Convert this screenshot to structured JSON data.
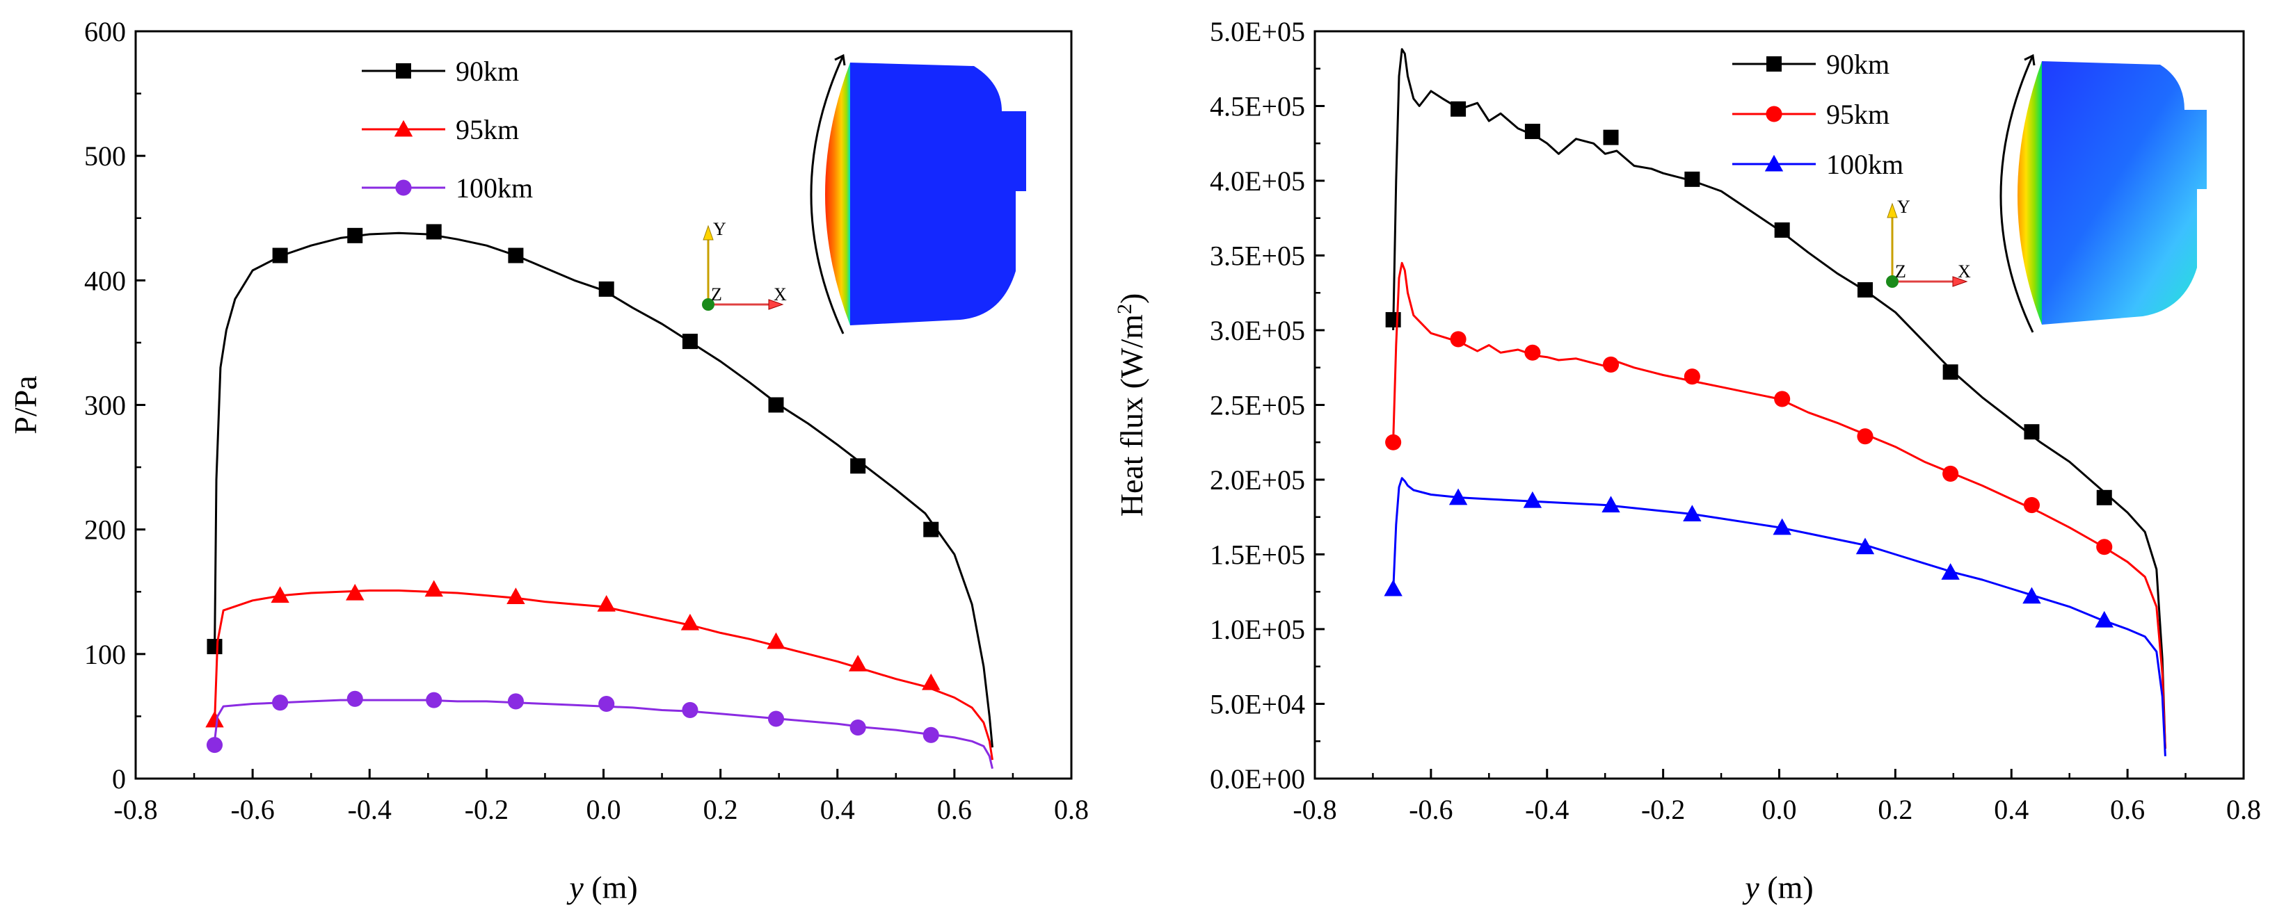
{
  "chart_data": [
    {
      "type": "line",
      "title": "",
      "xlabel_var": "y",
      "xlabel_unit": " (m)",
      "ylabel": "P/Pa",
      "xlim": [
        -0.8,
        0.8
      ],
      "ylim": [
        0,
        600
      ],
      "x_ticks": [
        -0.8,
        -0.6,
        -0.4,
        -0.2,
        0.0,
        0.2,
        0.4,
        0.6,
        0.8
      ],
      "x_tick_labels": [
        "-0.8",
        "-0.6",
        "-0.4",
        "-0.2",
        "0.0",
        "0.2",
        "0.4",
        "0.6",
        "0.8"
      ],
      "y_ticks": [
        0,
        100,
        200,
        300,
        400,
        500,
        600
      ],
      "y_tick_labels": [
        "0",
        "100",
        "200",
        "300",
        "400",
        "500",
        "600"
      ],
      "legend_position": "top-left",
      "grid": false,
      "series": [
        {
          "name": "90km",
          "color": "#000000",
          "marker": "square",
          "x": [
            -0.665,
            -0.662,
            -0.655,
            -0.645,
            -0.63,
            -0.6,
            -0.55,
            -0.5,
            -0.45,
            -0.4,
            -0.35,
            -0.3,
            -0.25,
            -0.2,
            -0.15,
            -0.1,
            -0.05,
            0.0,
            0.05,
            0.1,
            0.15,
            0.2,
            0.25,
            0.3,
            0.35,
            0.4,
            0.45,
            0.5,
            0.55,
            0.6,
            0.63,
            0.65,
            0.66,
            0.665
          ],
          "y": [
            100,
            240,
            330,
            360,
            385,
            408,
            420,
            428,
            434,
            437,
            438,
            437,
            433,
            428,
            420,
            410,
            400,
            392,
            378,
            365,
            350,
            335,
            318,
            300,
            285,
            268,
            250,
            232,
            213,
            180,
            140,
            90,
            50,
            25
          ],
          "marker_x": [
            -0.665,
            -0.553,
            -0.425,
            -0.29,
            -0.15,
            0.005,
            0.148,
            0.295,
            0.435,
            0.56
          ],
          "marker_y": [
            106,
            420,
            436,
            439,
            420,
            393,
            351,
            300,
            251,
            200
          ]
        },
        {
          "name": "95km",
          "color": "#ff0000",
          "marker": "triangle",
          "x": [
            -0.665,
            -0.66,
            -0.65,
            -0.6,
            -0.55,
            -0.5,
            -0.45,
            -0.4,
            -0.35,
            -0.3,
            -0.25,
            -0.2,
            -0.15,
            -0.1,
            -0.05,
            0.0,
            0.05,
            0.1,
            0.15,
            0.2,
            0.25,
            0.3,
            0.35,
            0.4,
            0.45,
            0.5,
            0.55,
            0.6,
            0.63,
            0.65,
            0.66,
            0.665
          ],
          "y": [
            45,
            110,
            135,
            143,
            147,
            149,
            150,
            151,
            151,
            150,
            149,
            147,
            145,
            142,
            140,
            138,
            133,
            128,
            123,
            117,
            112,
            106,
            100,
            94,
            87,
            80,
            74,
            65,
            57,
            45,
            30,
            15
          ],
          "marker_x": [
            -0.665,
            -0.553,
            -0.425,
            -0.29,
            -0.15,
            0.005,
            0.148,
            0.295,
            0.435,
            0.56
          ],
          "marker_y": [
            47,
            147,
            149,
            152,
            146,
            140,
            125,
            110,
            92,
            77
          ]
        },
        {
          "name": "100km",
          "color": "#8a2be2",
          "marker": "circle",
          "x": [
            -0.665,
            -0.66,
            -0.65,
            -0.6,
            -0.55,
            -0.5,
            -0.45,
            -0.4,
            -0.35,
            -0.3,
            -0.25,
            -0.2,
            -0.15,
            -0.1,
            -0.05,
            0.0,
            0.05,
            0.1,
            0.15,
            0.2,
            0.25,
            0.3,
            0.35,
            0.4,
            0.45,
            0.5,
            0.55,
            0.6,
            0.63,
            0.65,
            0.66,
            0.665
          ],
          "y": [
            30,
            50,
            58,
            60,
            61,
            62,
            63,
            63,
            63,
            63,
            62,
            62,
            61,
            60,
            59,
            58,
            57,
            55,
            54,
            52,
            50,
            48,
            46,
            44,
            41,
            39,
            36,
            33,
            30,
            26,
            18,
            8
          ],
          "marker_x": [
            -0.665,
            -0.553,
            -0.425,
            -0.29,
            -0.15,
            0.005,
            0.148,
            0.295,
            0.435,
            0.56
          ],
          "marker_y": [
            27,
            61,
            64,
            63,
            62,
            60,
            55,
            48,
            41,
            35
          ]
        }
      ]
    },
    {
      "type": "line",
      "title": "",
      "xlabel_var": "y",
      "xlabel_unit": " (m)",
      "ylabel": "Heat flux (W/m",
      "ylabel_sup": "2",
      "ylabel_end": ")",
      "xlim": [
        -0.8,
        0.8
      ],
      "ylim": [
        0,
        500000
      ],
      "x_ticks": [
        -0.8,
        -0.6,
        -0.4,
        -0.2,
        0.0,
        0.2,
        0.4,
        0.6,
        0.8
      ],
      "x_tick_labels": [
        "-0.8",
        "-0.6",
        "-0.4",
        "-0.2",
        "0.0",
        "0.2",
        "0.4",
        "0.6",
        "0.8"
      ],
      "y_ticks": [
        0,
        50000,
        100000,
        150000,
        200000,
        250000,
        300000,
        350000,
        400000,
        450000,
        500000
      ],
      "y_tick_labels": [
        "0.0E+00",
        "5.0E+04",
        "1.0E+05",
        "1.5E+05",
        "2.0E+05",
        "2.5E+05",
        "3.0E+05",
        "3.5E+05",
        "4.0E+05",
        "4.5E+05",
        "5.0E+05"
      ],
      "legend_position": "top-left",
      "grid": false,
      "series": [
        {
          "name": "90km",
          "color": "#000000",
          "marker": "square",
          "x": [
            -0.665,
            -0.66,
            -0.655,
            -0.65,
            -0.645,
            -0.64,
            -0.63,
            -0.62,
            -0.6,
            -0.58,
            -0.55,
            -0.52,
            -0.5,
            -0.48,
            -0.45,
            -0.42,
            -0.4,
            -0.38,
            -0.35,
            -0.32,
            -0.3,
            -0.28,
            -0.25,
            -0.22,
            -0.2,
            -0.15,
            -0.1,
            -0.05,
            0.0,
            0.05,
            0.1,
            0.15,
            0.2,
            0.25,
            0.3,
            0.35,
            0.4,
            0.45,
            0.5,
            0.55,
            0.6,
            0.63,
            0.65,
            0.66,
            0.665
          ],
          "y": [
            300000,
            400000,
            470000,
            488000,
            485000,
            470000,
            455000,
            450000,
            460000,
            455000,
            448000,
            452000,
            440000,
            445000,
            435000,
            430000,
            425000,
            418000,
            428000,
            425000,
            418000,
            420000,
            410000,
            408000,
            405000,
            400000,
            393000,
            380000,
            367000,
            352000,
            338000,
            326000,
            312000,
            292000,
            272000,
            255000,
            240000,
            225000,
            212000,
            195000,
            178000,
            165000,
            140000,
            80000,
            20000
          ],
          "marker_x": [
            -0.665,
            -0.553,
            -0.425,
            -0.29,
            -0.15,
            0.005,
            0.148,
            0.295,
            0.435,
            0.56
          ],
          "marker_y": [
            307000,
            448000,
            433000,
            429000,
            401000,
            367000,
            327000,
            272000,
            232000,
            188000
          ]
        },
        {
          "name": "95km",
          "color": "#ff0000",
          "marker": "circle",
          "x": [
            -0.665,
            -0.66,
            -0.655,
            -0.65,
            -0.645,
            -0.64,
            -0.63,
            -0.6,
            -0.55,
            -0.52,
            -0.5,
            -0.48,
            -0.45,
            -0.42,
            -0.4,
            -0.38,
            -0.35,
            -0.32,
            -0.3,
            -0.28,
            -0.25,
            -0.22,
            -0.2,
            -0.15,
            -0.1,
            -0.05,
            0.0,
            0.05,
            0.1,
            0.15,
            0.2,
            0.25,
            0.3,
            0.35,
            0.4,
            0.45,
            0.5,
            0.55,
            0.6,
            0.63,
            0.65,
            0.66,
            0.665
          ],
          "y": [
            225000,
            290000,
            335000,
            345000,
            340000,
            325000,
            310000,
            298000,
            292000,
            286000,
            290000,
            285000,
            287000,
            283000,
            282000,
            280000,
            281000,
            278000,
            276000,
            279000,
            275000,
            272000,
            270000,
            266000,
            262000,
            258000,
            254000,
            245000,
            238000,
            230000,
            222000,
            212000,
            204000,
            196000,
            187000,
            178000,
            168000,
            157000,
            145000,
            135000,
            115000,
            70000,
            20000
          ],
          "marker_x": [
            -0.665,
            -0.553,
            -0.425,
            -0.29,
            -0.15,
            0.005,
            0.148,
            0.295,
            0.435,
            0.56
          ],
          "marker_y": [
            225000,
            294000,
            285000,
            277000,
            269000,
            254000,
            229000,
            204000,
            183000,
            155000
          ]
        },
        {
          "name": "100km",
          "color": "#0000ff",
          "marker": "triangle",
          "x": [
            -0.665,
            -0.66,
            -0.655,
            -0.65,
            -0.645,
            -0.64,
            -0.63,
            -0.6,
            -0.55,
            -0.5,
            -0.45,
            -0.4,
            -0.35,
            -0.3,
            -0.25,
            -0.2,
            -0.15,
            -0.1,
            -0.05,
            0.0,
            0.05,
            0.1,
            0.15,
            0.2,
            0.25,
            0.3,
            0.35,
            0.4,
            0.45,
            0.5,
            0.55,
            0.6,
            0.63,
            0.65,
            0.66,
            0.665
          ],
          "y": [
            125000,
            170000,
            195000,
            201000,
            199000,
            196000,
            193000,
            190000,
            188000,
            187000,
            186000,
            185000,
            184000,
            183000,
            181000,
            179000,
            177000,
            174000,
            171000,
            168000,
            164000,
            160000,
            156000,
            150000,
            144000,
            138000,
            133000,
            127000,
            121000,
            115000,
            107000,
            100000,
            95000,
            85000,
            55000,
            15000
          ],
          "marker_x": [
            -0.665,
            -0.553,
            -0.425,
            -0.29,
            -0.15,
            0.005,
            0.148,
            0.295,
            0.435,
            0.56
          ],
          "marker_y": [
            127000,
            188000,
            186000,
            183000,
            177000,
            168000,
            155000,
            138000,
            122000,
            106000
          ]
        }
      ],
      "inset": {
        "axis_y": "Y",
        "axis_z": "Z",
        "axis_x": "X"
      }
    }
  ],
  "insets": [
    {
      "axis_y": "Y",
      "axis_z": "Z",
      "axis_x": "X"
    },
    {
      "axis_y": "Y",
      "axis_z": "Z",
      "axis_x": "X"
    }
  ]
}
